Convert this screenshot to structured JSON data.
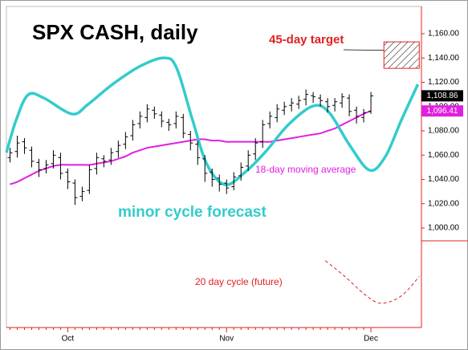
{
  "chart_data": {
    "type": "ohlc",
    "title": "SPX CASH, daily",
    "categories": [
      null,
      null,
      null,
      null,
      null,
      null,
      null,
      null,
      "Oct",
      null,
      null,
      null,
      null,
      null,
      null,
      null,
      null,
      null,
      null,
      null,
      null,
      null,
      null,
      null,
      null,
      null,
      null,
      null,
      null,
      null,
      "Nov",
      null,
      null,
      null,
      null,
      null,
      null,
      null,
      null,
      null,
      null,
      null,
      null,
      null,
      null,
      null,
      null,
      null,
      null,
      null,
      "Dec"
    ],
    "xlim": [
      -0.5,
      57
    ],
    "ylim": [
      918,
      1182.5
    ],
    "yticks": [
      {
        "value": 1000,
        "label": "1,000.00"
      },
      {
        "value": 1020,
        "label": "1,020.00"
      },
      {
        "value": 1040,
        "label": "1,040.00"
      },
      {
        "value": 1060,
        "label": "1,060.00"
      },
      {
        "value": 1080,
        "label": "1,080.00"
      },
      {
        "value": 1100,
        "label": "1,100.00"
      },
      {
        "value": 1120,
        "label": "1,120.00"
      },
      {
        "value": 1140,
        "label": "1,140.00"
      },
      {
        "value": 1160,
        "label": "1,160.00"
      }
    ],
    "bar_color": "#000000",
    "open": [
      1058,
      1063,
      1071,
      1064,
      1054,
      1049,
      1053,
      1058,
      1046,
      1037,
      1026,
      1031,
      1049,
      1057,
      1056,
      1063,
      1069,
      1076,
      1086,
      1091,
      1097,
      1093,
      1087,
      1086,
      1091,
      1077,
      1069,
      1057,
      1046,
      1041,
      1037,
      1034,
      1043,
      1051,
      1061,
      1071,
      1086,
      1091,
      1097,
      1101,
      1102,
      1106,
      1109,
      1107,
      1104,
      1101,
      1103,
      1107,
      1097,
      1091,
      1096
    ],
    "high": [
      1066,
      1076,
      1074,
      1067,
      1057,
      1056,
      1064,
      1062,
      1049,
      1040,
      1034,
      1052,
      1062,
      1060,
      1066,
      1072,
      1079,
      1089,
      1096,
      1102,
      1100,
      1096,
      1090,
      1096,
      1094,
      1080,
      1072,
      1060,
      1049,
      1044,
      1040,
      1046,
      1054,
      1064,
      1074,
      1089,
      1096,
      1102,
      1104,
      1107,
      1109,
      1114,
      1112,
      1110,
      1107,
      1107,
      1111,
      1110,
      1100,
      1098,
      1112
    ],
    "low": [
      1054,
      1058,
      1061,
      1050,
      1042,
      1045,
      1049,
      1040,
      1032,
      1019,
      1022,
      1028,
      1044,
      1050,
      1052,
      1058,
      1065,
      1072,
      1082,
      1087,
      1090,
      1083,
      1080,
      1082,
      1074,
      1064,
      1052,
      1038,
      1034,
      1030,
      1028,
      1031,
      1039,
      1047,
      1056,
      1066,
      1082,
      1087,
      1093,
      1096,
      1098,
      1101,
      1103,
      1100,
      1095,
      1096,
      1099,
      1092,
      1086,
      1087,
      1094
    ],
    "close": [
      1062,
      1070,
      1066,
      1055,
      1048,
      1052,
      1060,
      1045,
      1038,
      1025,
      1030,
      1048,
      1058,
      1055,
      1062,
      1068,
      1075,
      1085,
      1092,
      1098,
      1094,
      1088,
      1085,
      1092,
      1078,
      1070,
      1058,
      1045,
      1040,
      1036,
      1033,
      1042,
      1050,
      1060,
      1070,
      1085,
      1092,
      1098,
      1100,
      1103,
      1105,
      1110,
      1108,
      1105,
      1100,
      1104,
      1108,
      1096,
      1092,
      1095,
      1108.86
    ],
    "lines": [
      {
        "name": "18-day moving average",
        "color": "#e020e0",
        "width": 2,
        "values": [
          1036,
          1038,
          1041,
          1044,
          1047,
          1049,
          1051,
          1052,
          1052,
          1052,
          1052,
          1052,
          1053,
          1054,
          1055,
          1057,
          1059,
          1062,
          1064,
          1066,
          1067,
          1068,
          1069,
          1070,
          1071,
          1072,
          1073,
          1073,
          1072,
          1072,
          1071,
          1071,
          1071,
          1071,
          1071,
          1071,
          1071,
          1072,
          1073,
          1074,
          1075,
          1076,
          1077,
          1078,
          1080,
          1082,
          1085,
          1088,
          1091,
          1094,
          1096.41
        ]
      },
      {
        "name": "minor cycle forecast",
        "color": "#33cccc",
        "width": 3.5,
        "x": [
          -0.5,
          0.83,
          2.5,
          4.7,
          8.6,
          10.8,
          14.2,
          18.1,
          21.4,
          23.1,
          25.3,
          27.3,
          29.8,
          32.5,
          35.3,
          38.6,
          42,
          44.2,
          47,
          49.8,
          52,
          54.2,
          56.5
        ],
        "values": [
          1062.1,
          1088.6,
          1109.7,
          1107,
          1093.9,
          1101.8,
          1118.3,
          1133.5,
          1140.1,
          1131.5,
          1088.6,
          1052.2,
          1035.7,
          1045.6,
          1062.1,
          1085.3,
          1100.5,
          1095.2,
          1068.7,
          1047.6,
          1058.8,
          1088.6,
          1118.3
        ]
      },
      {
        "name": "20 day cycle (future)",
        "color": "#e02020",
        "width": 1,
        "dashed": true,
        "x": [
          43.7,
          46.4,
          49.2,
          51.4,
          54.2,
          56.7
        ],
        "values": [
          973,
          960,
          945,
          938,
          944,
          960
        ]
      }
    ],
    "target": {
      "label": "45-day target",
      "color": "#e02020",
      "x": [
        51.8,
        56.7
      ],
      "y": [
        1131.5,
        1153.3
      ]
    },
    "price_tags": [
      {
        "value": 1108.86,
        "label": "1,108.86",
        "color": "#000000"
      },
      {
        "value": 1096.41,
        "label": "1,096.41",
        "color": "#e020e0"
      }
    ]
  }
}
